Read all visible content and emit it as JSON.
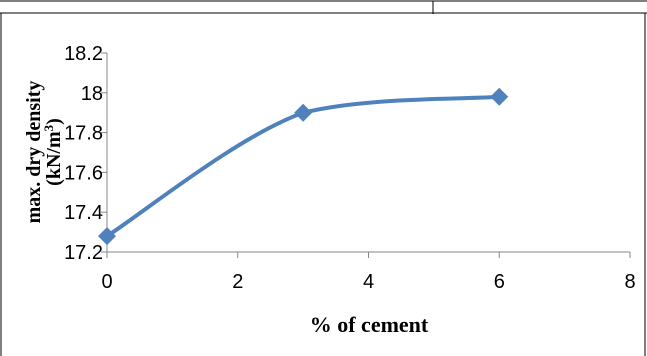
{
  "chart_data": {
    "type": "line",
    "title": "",
    "xlabel": "% of cement",
    "ylabel_line1": "max. dry density",
    "ylabel_line2_prefix": "(kN/m",
    "ylabel_line2_sup": "3",
    "ylabel_line2_suffix": ")",
    "xlim": [
      0,
      8
    ],
    "ylim": [
      17.2,
      18.2
    ],
    "x_ticks": [
      "0",
      "2",
      "4",
      "6",
      "8"
    ],
    "y_ticks": [
      "17.2",
      "17.4",
      "17.6",
      "17.8",
      "18",
      "18.2"
    ],
    "series": [
      {
        "x": [
          0,
          3,
          6
        ],
        "y": [
          17.28,
          17.9,
          17.98
        ],
        "color": "#4F81BD",
        "marker": "diamond",
        "smooth": true
      }
    ],
    "grid": false,
    "legend": "none"
  }
}
